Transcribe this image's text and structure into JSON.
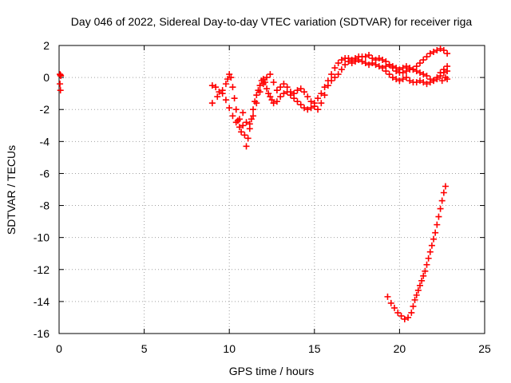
{
  "chart_data": {
    "type": "scatter",
    "title": "Day 046 of 2022, Sidereal Day-to-day VTEC variation (SDTVAR) for receiver riga",
    "xlabel": "GPS time / hours",
    "ylabel": "SDTVAR / TECUs",
    "xlim": [
      0,
      25
    ],
    "ylim": [
      -16,
      2
    ],
    "xticks": [
      "0",
      "5",
      "10",
      "15",
      "20",
      "25"
    ],
    "yticks": [
      "2",
      "0",
      "-2",
      "-4",
      "-6",
      "-8",
      "-10",
      "-12",
      "-14",
      "-16"
    ],
    "grid": true,
    "legend": "none",
    "marker": "+",
    "color": "#ff0000",
    "series": [
      {
        "points": [
          [
            0.05,
            0.2
          ],
          [
            0.08,
            0.15
          ],
          [
            0.1,
            0.1
          ],
          [
            0.05,
            -0.4
          ],
          [
            0.08,
            -0.8
          ]
        ]
      },
      {
        "points": [
          [
            9.0,
            -0.5
          ],
          [
            9.2,
            -0.6
          ],
          [
            9.4,
            -0.9
          ],
          [
            9.6,
            -0.8
          ],
          [
            9.8,
            -0.4
          ],
          [
            9.9,
            -0.1
          ],
          [
            10.0,
            0.2
          ],
          [
            10.1,
            0.0
          ],
          [
            10.2,
            -0.6
          ],
          [
            10.3,
            -1.3
          ],
          [
            10.4,
            -2.0
          ],
          [
            10.5,
            -2.7
          ],
          [
            10.6,
            -3.1
          ],
          [
            10.7,
            -3.4
          ],
          [
            10.8,
            -3.0
          ],
          [
            10.9,
            -3.6
          ],
          [
            11.0,
            -4.3
          ],
          [
            11.1,
            -3.8
          ],
          [
            11.2,
            -3.2
          ],
          [
            11.3,
            -2.6
          ],
          [
            11.4,
            -2.0
          ],
          [
            11.5,
            -1.5
          ],
          [
            11.6,
            -1.1
          ],
          [
            11.7,
            -0.8
          ],
          [
            11.8,
            -0.5
          ],
          [
            11.9,
            -0.2
          ],
          [
            12.0,
            -0.1
          ],
          [
            12.1,
            -0.3
          ],
          [
            12.2,
            -0.7
          ],
          [
            12.3,
            -1.0
          ],
          [
            12.4,
            -1.2
          ],
          [
            12.5,
            -1.4
          ],
          [
            12.6,
            -1.6
          ],
          [
            12.8,
            -1.5
          ],
          [
            13.0,
            -1.2
          ],
          [
            13.2,
            -1.0
          ],
          [
            13.4,
            -0.9
          ],
          [
            13.6,
            -1.1
          ],
          [
            13.8,
            -1.3
          ],
          [
            14.0,
            -1.5
          ],
          [
            14.2,
            -1.7
          ],
          [
            14.4,
            -1.9
          ],
          [
            14.6,
            -2.0
          ],
          [
            14.8,
            -1.9
          ],
          [
            15.0,
            -1.6
          ],
          [
            15.2,
            -1.3
          ],
          [
            15.4,
            -1.0
          ],
          [
            15.6,
            -0.6
          ],
          [
            15.8,
            -0.2
          ],
          [
            16.0,
            0.2
          ],
          [
            16.2,
            0.6
          ],
          [
            16.4,
            0.9
          ],
          [
            16.6,
            1.1
          ],
          [
            16.8,
            1.2
          ],
          [
            17.0,
            1.2
          ],
          [
            17.2,
            1.1
          ],
          [
            17.4,
            1.2
          ],
          [
            17.6,
            1.3
          ],
          [
            17.8,
            1.3
          ],
          [
            18.0,
            1.3
          ],
          [
            18.2,
            1.4
          ],
          [
            18.4,
            1.2
          ],
          [
            18.6,
            1.1
          ],
          [
            18.8,
            1.2
          ],
          [
            19.0,
            1.1
          ],
          [
            19.2,
            1.0
          ],
          [
            19.4,
            0.8
          ],
          [
            19.6,
            0.6
          ],
          [
            19.8,
            0.4
          ],
          [
            20.0,
            0.3
          ],
          [
            20.2,
            0.3
          ],
          [
            20.4,
            0.4
          ],
          [
            20.6,
            0.5
          ],
          [
            20.8,
            0.5
          ],
          [
            21.0,
            0.7
          ],
          [
            21.2,
            0.9
          ],
          [
            21.4,
            1.1
          ],
          [
            21.6,
            1.3
          ],
          [
            21.8,
            1.5
          ],
          [
            22.0,
            1.6
          ],
          [
            22.2,
            1.7
          ],
          [
            22.4,
            1.8
          ],
          [
            22.6,
            1.7
          ],
          [
            22.8,
            1.5
          ]
        ]
      },
      {
        "points": [
          [
            9.0,
            -1.6
          ],
          [
            9.3,
            -1.2
          ],
          [
            9.6,
            -1.0
          ],
          [
            9.8,
            -1.4
          ],
          [
            10.0,
            -1.9
          ],
          [
            10.2,
            -2.4
          ],
          [
            10.4,
            -2.8
          ],
          [
            10.6,
            -2.6
          ],
          [
            10.8,
            -2.2
          ],
          [
            11.0,
            -2.8
          ],
          [
            11.2,
            -2.9
          ],
          [
            11.4,
            -2.4
          ],
          [
            11.6,
            -1.6
          ],
          [
            11.8,
            -0.9
          ],
          [
            12.0,
            -0.4
          ],
          [
            12.2,
            0.0
          ],
          [
            12.4,
            0.2
          ],
          [
            12.6,
            -0.3
          ],
          [
            12.8,
            -0.8
          ],
          [
            13.0,
            -0.6
          ],
          [
            13.2,
            -0.4
          ],
          [
            13.4,
            -0.6
          ],
          [
            13.6,
            -0.9
          ],
          [
            13.8,
            -1.0
          ],
          [
            14.0,
            -0.8
          ],
          [
            14.2,
            -0.7
          ],
          [
            14.4,
            -0.9
          ],
          [
            14.6,
            -1.2
          ],
          [
            14.8,
            -1.5
          ],
          [
            15.0,
            -1.8
          ],
          [
            15.2,
            -2.0
          ],
          [
            15.4,
            -1.6
          ],
          [
            15.6,
            -1.1
          ],
          [
            15.8,
            -0.5
          ],
          [
            16.0,
            -0.2
          ],
          [
            16.2,
            0.0
          ],
          [
            16.4,
            0.2
          ],
          [
            16.6,
            0.5
          ],
          [
            16.8,
            0.8
          ],
          [
            17.0,
            1.0
          ],
          [
            17.2,
            0.9
          ],
          [
            17.4,
            1.0
          ],
          [
            17.6,
            1.1
          ],
          [
            17.8,
            1.0
          ],
          [
            18.0,
            0.9
          ],
          [
            18.2,
            0.8
          ],
          [
            18.4,
            0.9
          ],
          [
            18.6,
            0.8
          ],
          [
            18.8,
            0.7
          ],
          [
            19.0,
            0.6
          ],
          [
            19.2,
            0.4
          ],
          [
            19.4,
            0.2
          ],
          [
            19.6,
            0.0
          ],
          [
            19.8,
            -0.1
          ],
          [
            20.0,
            -0.2
          ],
          [
            20.2,
            -0.1
          ],
          [
            20.4,
            0.0
          ],
          [
            20.6,
            -0.2
          ],
          [
            20.8,
            -0.3
          ],
          [
            21.0,
            -0.3
          ],
          [
            21.2,
            -0.2
          ],
          [
            21.4,
            -0.3
          ],
          [
            21.6,
            -0.4
          ],
          [
            21.8,
            -0.3
          ],
          [
            22.0,
            -0.2
          ],
          [
            22.2,
            0.0
          ],
          [
            22.4,
            0.3
          ],
          [
            22.6,
            0.5
          ],
          [
            22.8,
            0.7
          ]
        ]
      },
      {
        "points": [
          [
            22.8,
            0.4
          ],
          [
            22.6,
            0.3
          ],
          [
            22.4,
            0.1
          ],
          [
            22.2,
            -0.1
          ],
          [
            22.0,
            -0.2
          ],
          [
            21.8,
            -0.1
          ],
          [
            21.6,
            0.1
          ],
          [
            21.4,
            0.2
          ],
          [
            21.2,
            0.3
          ],
          [
            21.0,
            0.4
          ],
          [
            20.8,
            0.5
          ],
          [
            20.6,
            0.6
          ],
          [
            20.4,
            0.7
          ],
          [
            20.2,
            0.6
          ],
          [
            20.0,
            0.5
          ],
          [
            19.8,
            0.6
          ],
          [
            19.6,
            0.7
          ],
          [
            19.4,
            0.8
          ],
          [
            19.2,
            0.7
          ],
          [
            22.8,
            -0.1
          ],
          [
            22.7,
            0.0
          ],
          [
            22.5,
            -0.2
          ]
        ]
      },
      {
        "points": [
          [
            19.3,
            -13.7
          ],
          [
            19.5,
            -14.1
          ],
          [
            19.7,
            -14.4
          ],
          [
            19.9,
            -14.7
          ],
          [
            20.1,
            -14.9
          ],
          [
            20.3,
            -15.1
          ],
          [
            20.5,
            -15.0
          ],
          [
            20.7,
            -14.7
          ],
          [
            20.8,
            -14.3
          ],
          [
            20.9,
            -13.9
          ],
          [
            21.0,
            -13.6
          ],
          [
            21.1,
            -13.3
          ],
          [
            21.2,
            -13.0
          ],
          [
            21.3,
            -12.7
          ],
          [
            21.4,
            -12.4
          ],
          [
            21.5,
            -12.1
          ],
          [
            21.6,
            -11.7
          ],
          [
            21.7,
            -11.3
          ],
          [
            21.8,
            -10.9
          ],
          [
            21.9,
            -10.5
          ],
          [
            22.0,
            -10.1
          ],
          [
            22.1,
            -9.7
          ],
          [
            22.2,
            -9.2
          ],
          [
            22.3,
            -8.7
          ],
          [
            22.4,
            -8.2
          ],
          [
            22.5,
            -7.7
          ],
          [
            22.6,
            -7.2
          ],
          [
            22.7,
            -6.8
          ]
        ]
      }
    ]
  }
}
